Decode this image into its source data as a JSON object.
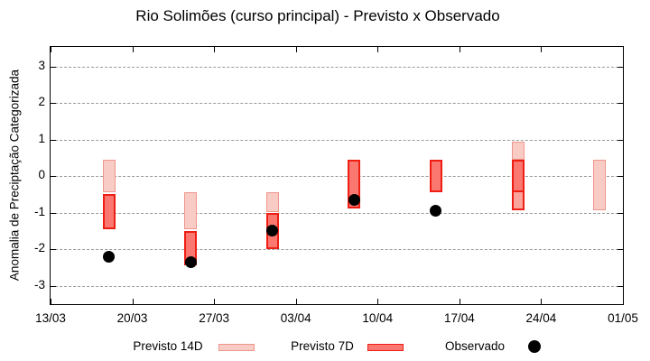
{
  "title": "Rio Solimões (curso principal) - Previsto x Observado",
  "chart_data": {
    "type": "interval-bar+scatter",
    "title": "Rio Solimões (curso principal) - Previsto x Observado",
    "xlabel": "",
    "ylabel": "Anomalia de Preciptação Categorizada",
    "ylim": [
      -3.5,
      3.55
    ],
    "grid": "horizontal-dashed",
    "legend_position": "bottom",
    "yticks": [
      3,
      2,
      1,
      0,
      -1,
      -2,
      -3
    ],
    "ytick_labels": [
      "3",
      "2",
      "1",
      "0",
      "-1",
      "-2",
      "-3"
    ],
    "x_range_days": 49,
    "xticks": [
      {
        "day": 0,
        "label": "13/03"
      },
      {
        "day": 7,
        "label": "20/03"
      },
      {
        "day": 14,
        "label": "27/03"
      },
      {
        "day": 21,
        "label": "03/04"
      },
      {
        "day": 28,
        "label": "10/04"
      },
      {
        "day": 35,
        "label": "17/04"
      },
      {
        "day": 42,
        "label": "24/04"
      },
      {
        "day": 49,
        "label": "01/05"
      }
    ],
    "legend": [
      {
        "label": "Previsto 14D",
        "swatch": "14d"
      },
      {
        "label": "Previsto 7D",
        "swatch": "7d"
      },
      {
        "label": "Observado",
        "swatch": "dot"
      }
    ],
    "colors": {
      "previsto_14d_fill": "#f9cbc5",
      "previsto_14d_border": "#ee968c",
      "previsto_7d_fill": "#fa7870",
      "previsto_7d_border": "#ee1e14",
      "previsto_7d_light_fill": "#fba49c",
      "observado": "#000000",
      "grid": "#9a9a9a",
      "axis": "#000000"
    },
    "clusters": [
      {
        "date": "18/03",
        "day": 5,
        "bars": [
          {
            "kind": "14d",
            "from": 0.45,
            "to": -0.45
          },
          {
            "kind": "7d",
            "from": -0.5,
            "to": -1.45
          }
        ],
        "observed": -2.2
      },
      {
        "date": "25/03",
        "day": 12,
        "bars": [
          {
            "kind": "14d",
            "from": -0.45,
            "to": -1.45
          },
          {
            "kind": "7d",
            "from": -1.5,
            "to": -2.45
          }
        ],
        "observed": -2.35
      },
      {
        "date": "01/04",
        "day": 19,
        "bars": [
          {
            "kind": "14d",
            "from": -0.45,
            "to": -1.0
          },
          {
            "kind": "7d",
            "from": -1.0,
            "to": -2.0
          }
        ],
        "observed": -1.5
      },
      {
        "date": "08/04",
        "day": 26,
        "bars": [
          {
            "kind": "7d",
            "from": 0.45,
            "to": -0.9
          }
        ],
        "observed": -0.65
      },
      {
        "date": "15/04",
        "day": 33,
        "bars": [
          {
            "kind": "7d",
            "from": 0.45,
            "to": -0.45
          }
        ],
        "observed": -0.95
      },
      {
        "date": "22/04",
        "day": 40,
        "bars": [
          {
            "kind": "14d",
            "from": 0.95,
            "to": 0.45
          },
          {
            "kind": "7d",
            "from": 0.45,
            "to": -0.45
          },
          {
            "kind": "7d_light",
            "from": -0.45,
            "to": -0.95
          }
        ],
        "observed": null
      },
      {
        "date": "29/04",
        "day": 47,
        "bars": [
          {
            "kind": "14d",
            "from": 0.45,
            "to": -0.95
          }
        ],
        "observed": null
      }
    ]
  }
}
